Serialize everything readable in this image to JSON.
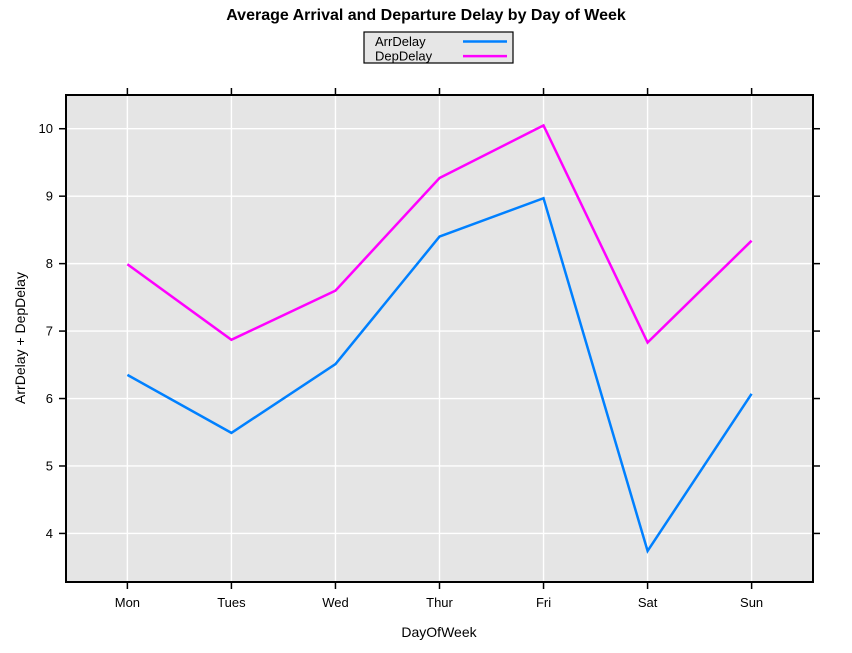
{
  "chart_data": {
    "type": "line",
    "title": "Average Arrival and Departure Delay by Day of Week",
    "xlabel": "DayOfWeek",
    "ylabel": "ArrDelay + DepDelay",
    "categories": [
      "Mon",
      "Tues",
      "Wed",
      "Thur",
      "Fri",
      "Sat",
      "Sun"
    ],
    "series": [
      {
        "name": "ArrDelay",
        "color": "#0080FF",
        "values": [
          6.35,
          5.49,
          6.51,
          8.4,
          8.97,
          3.74,
          6.07
        ]
      },
      {
        "name": "DepDelay",
        "color": "#FF00FF",
        "values": [
          7.99,
          6.87,
          7.6,
          9.27,
          10.05,
          6.83,
          8.34
        ]
      }
    ],
    "yticks": [
      4,
      5,
      6,
      7,
      8,
      9,
      10
    ],
    "ylim": [
      3.28,
      10.5
    ],
    "grid": true,
    "legend_position": "top-center",
    "colors": {
      "plot_background": "#E5E5E5",
      "grid": "#FFFFFF",
      "border": "#000000",
      "page_background": "#FFFFFF",
      "text": "#000000",
      "legend_background": "#E6E6E6",
      "legend_border": "#000000"
    }
  }
}
